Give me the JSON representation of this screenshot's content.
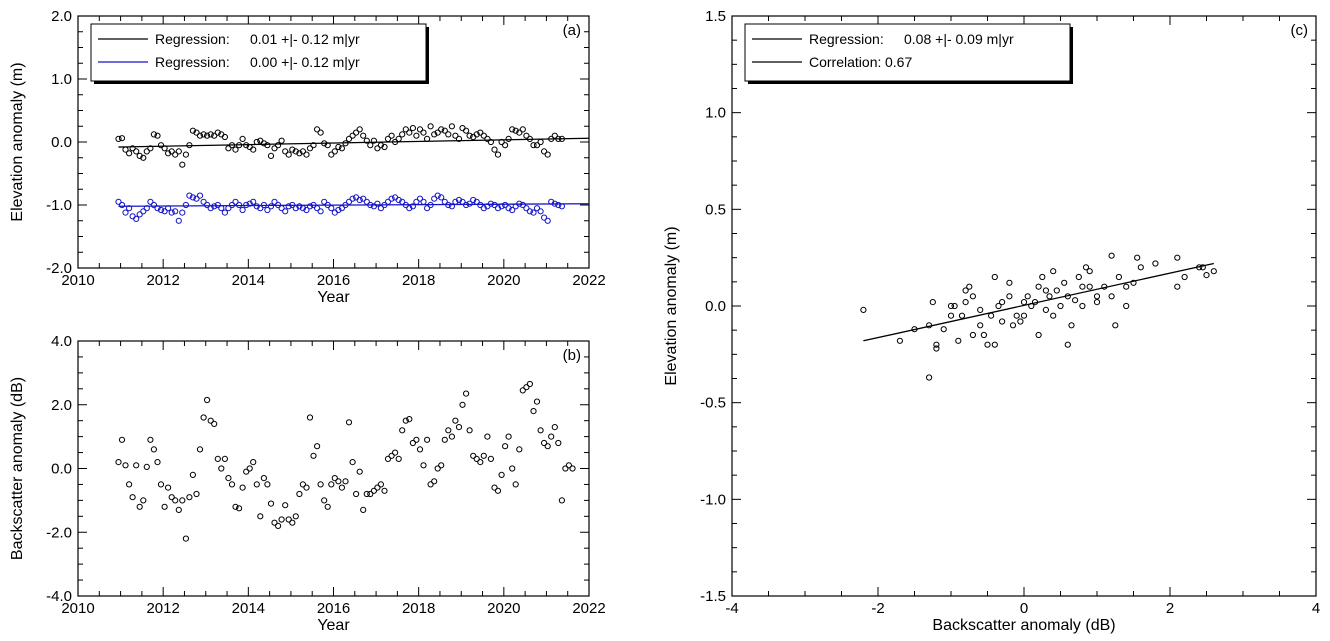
{
  "chart_data": [
    {
      "panel": "(a)",
      "type": "scatter",
      "xlabel": "Year",
      "ylabel": "Elevation anomaly (m)",
      "xlim": [
        2010,
        2022
      ],
      "ylim": [
        -2.0,
        2.0
      ],
      "xticks": [
        "2010",
        "2012",
        "2014",
        "2016",
        "2018",
        "2020",
        "2022"
      ],
      "yticks": [
        "-2.0",
        "-1.0",
        "0.0",
        "1.0",
        "2.0"
      ],
      "legend": {
        "placement": "top-left",
        "entries": [
          {
            "label": "Regression:",
            "value": "0.01 +|-  0.12 m|yr",
            "color": "#000000"
          },
          {
            "label": "Regression:",
            "value": "0.00 +|-  0.12 m|yr",
            "color": "#1414c8"
          }
        ]
      },
      "series": [
        {
          "color": "#000000",
          "x_start": 2010.95,
          "x_step": 0.0833,
          "values": [
            0.05,
            0.06,
            -0.12,
            -0.18,
            -0.1,
            -0.15,
            -0.22,
            -0.25,
            -0.15,
            -0.1,
            0.12,
            0.1,
            -0.05,
            -0.1,
            -0.18,
            -0.15,
            -0.2,
            -0.15,
            -0.36,
            -0.2,
            -0.05,
            0.18,
            0.15,
            0.1,
            0.12,
            0.1,
            0.12,
            0.1,
            0.15,
            0.12,
            0.08,
            -0.1,
            -0.05,
            -0.12,
            -0.05,
            0.05,
            -0.05,
            -0.08,
            -0.12,
            0.0,
            0.02,
            -0.02,
            -0.05,
            -0.22,
            -0.1,
            -0.05,
            0.02,
            -0.15,
            -0.2,
            -0.12,
            -0.15,
            -0.18,
            -0.15,
            -0.2,
            -0.1,
            -0.05,
            0.2,
            0.15,
            -0.02,
            -0.05,
            -0.2,
            -0.15,
            -0.08,
            -0.1,
            -0.02,
            0.05,
            0.1,
            0.15,
            0.2,
            0.1,
            0.02,
            -0.05,
            0.02,
            -0.1,
            -0.05,
            -0.08,
            0.05,
            0.1,
            0.0,
            0.05,
            0.12,
            0.2,
            0.15,
            0.22,
            0.1,
            0.2,
            0.15,
            0.05,
            0.25,
            0.12,
            0.15,
            0.2,
            0.18,
            0.12,
            0.25,
            0.1,
            0.05,
            0.22,
            0.18,
            0.1,
            0.08,
            0.12,
            0.15,
            0.1,
            0.05,
            0.0,
            -0.12,
            -0.2,
            0.0,
            -0.05,
            0.05,
            0.2,
            0.18,
            0.15,
            0.2,
            0.1,
            0.05,
            -0.05,
            -0.05,
            0.0,
            -0.15,
            -0.2,
            0.05,
            0.1,
            0.05,
            0.05
          ],
          "trend": [
            -0.08,
            0.06
          ]
        },
        {
          "color": "#1414c8",
          "x_start": 2010.95,
          "x_step": 0.0833,
          "values": [
            -0.95,
            -1.0,
            -1.12,
            -1.05,
            -1.18,
            -1.22,
            -1.15,
            -1.1,
            -1.05,
            -0.95,
            -1.0,
            -1.05,
            -1.08,
            -1.1,
            -1.05,
            -1.12,
            -1.1,
            -1.25,
            -1.12,
            -1.0,
            -0.85,
            -0.88,
            -0.9,
            -0.85,
            -0.95,
            -1.0,
            -1.05,
            -1.02,
            -1.0,
            -1.05,
            -1.12,
            -1.05,
            -1.0,
            -0.95,
            -1.0,
            -1.08,
            -1.0,
            -0.98,
            -0.95,
            -1.02,
            -1.05,
            -1.0,
            -1.08,
            -1.02,
            -0.95,
            -1.0,
            -1.05,
            -1.1,
            -1.02,
            -1.0,
            -1.05,
            -1.02,
            -1.05,
            -1.08,
            -1.02,
            -1.0,
            -1.05,
            -1.1,
            -0.95,
            -1.0,
            -1.05,
            -1.12,
            -1.08,
            -1.05,
            -1.0,
            -0.95,
            -0.9,
            -0.88,
            -0.92,
            -0.9,
            -0.95,
            -1.0,
            -1.02,
            -0.98,
            -1.05,
            -1.0,
            -0.95,
            -0.9,
            -0.88,
            -0.92,
            -0.95,
            -1.0,
            -1.05,
            -1.02,
            -0.95,
            -0.9,
            -0.95,
            -1.05,
            -1.0,
            -0.9,
            -0.85,
            -0.88,
            -0.95,
            -1.0,
            -1.02,
            -0.95,
            -0.92,
            -0.95,
            -1.0,
            -0.98,
            -0.92,
            -0.95,
            -1.0,
            -1.05,
            -1.02,
            -0.98,
            -1.0,
            -1.05,
            -1.02,
            -1.0,
            -1.05,
            -1.08,
            -1.02,
            -0.98,
            -1.0,
            -1.05,
            -1.1,
            -1.12,
            -1.05,
            -1.1,
            -1.2,
            -1.25,
            -0.95,
            -0.98,
            -1.0,
            -1.02
          ],
          "trend": [
            -1.02,
            -0.98
          ]
        }
      ]
    },
    {
      "panel": "(b)",
      "type": "scatter",
      "xlabel": "Year",
      "ylabel": "Backscatter anomaly (dB)",
      "xlim": [
        2010,
        2022
      ],
      "ylim": [
        -4.0,
        4.0
      ],
      "xticks": [
        "2010",
        "2012",
        "2014",
        "2016",
        "2018",
        "2020",
        "2022"
      ],
      "yticks": [
        "-4.0",
        "-2.0",
        "0.0",
        "2.0",
        "4.0"
      ],
      "series": [
        {
          "color": "#000000",
          "x_start": 2010.95,
          "x_step": 0.0833,
          "values": [
            0.2,
            0.9,
            0.1,
            -0.5,
            -0.9,
            0.1,
            -1.2,
            -1.0,
            0.05,
            0.9,
            0.6,
            0.2,
            -0.5,
            -1.2,
            -0.6,
            -0.9,
            -1.0,
            -1.3,
            -1.0,
            -2.2,
            -0.9,
            -0.2,
            -0.8,
            0.6,
            1.6,
            2.15,
            1.5,
            1.4,
            0.3,
            0.0,
            0.3,
            -0.3,
            -0.5,
            -1.2,
            -1.25,
            -0.6,
            -0.1,
            0.0,
            0.2,
            -0.5,
            -1.5,
            -0.3,
            -0.5,
            -1.1,
            -1.7,
            -1.8,
            -1.6,
            -1.15,
            -1.6,
            -1.7,
            -1.5,
            -0.8,
            -0.5,
            -0.6,
            1.6,
            0.4,
            0.7,
            -0.5,
            -1.0,
            -1.2,
            -0.5,
            -0.3,
            -0.4,
            -0.6,
            -0.4,
            1.45,
            0.2,
            -0.8,
            -0.1,
            -1.3,
            -0.8,
            -0.8,
            -0.7,
            -0.6,
            -0.5,
            -0.7,
            0.3,
            0.4,
            0.5,
            0.3,
            1.2,
            1.5,
            1.55,
            0.8,
            0.9,
            0.6,
            0.1,
            0.9,
            -0.5,
            -0.4,
            0.0,
            0.1,
            0.9,
            1.2,
            1.0,
            1.5,
            1.3,
            2.0,
            2.35,
            1.2,
            0.4,
            0.3,
            0.2,
            0.4,
            1.0,
            0.3,
            -0.6,
            -0.7,
            -0.2,
            0.7,
            1.0,
            0.0,
            -0.5,
            0.6,
            2.45,
            2.55,
            2.65,
            1.8,
            2.1,
            1.2,
            0.8,
            0.7,
            1.0,
            1.3,
            0.8,
            -1.0,
            0.0,
            0.1,
            0.0
          ]
        }
      ]
    },
    {
      "panel": "(c)",
      "type": "scatter",
      "xlabel": "Backscatter anomaly (dB)",
      "ylabel": "Elevation anomaly (m)",
      "xlim": [
        -4,
        4
      ],
      "ylim": [
        -1.5,
        1.5
      ],
      "xticks": [
        "-4",
        "-2",
        "0",
        "2",
        "4"
      ],
      "yticks": [
        "-1.5",
        "-1.0",
        "-0.5",
        "0.0",
        "0.5",
        "1.0",
        "1.5"
      ],
      "legend": {
        "placement": "top-left",
        "entries": [
          {
            "label": "Regression:",
            "value": "0.08 +|-  0.09 m|yr",
            "color": "#000000"
          },
          {
            "label": "Correlation:",
            "value": "0.67",
            "color": "#000000"
          }
        ]
      },
      "series": [
        {
          "color": "#000000",
          "points": [
            [
              -2.2,
              -0.02
            ],
            [
              -1.3,
              -0.37
            ],
            [
              -1.25,
              0.02
            ],
            [
              -1.3,
              -0.1
            ],
            [
              -1.2,
              -0.2
            ],
            [
              -1.1,
              -0.12
            ],
            [
              -1.0,
              -0.05
            ],
            [
              -0.95,
              0.0
            ],
            [
              -0.9,
              -0.18
            ],
            [
              -0.85,
              -0.05
            ],
            [
              -0.8,
              0.02
            ],
            [
              -0.75,
              0.1
            ],
            [
              -0.7,
              0.05
            ],
            [
              -0.6,
              -0.1
            ],
            [
              -0.55,
              -0.15
            ],
            [
              -0.5,
              -0.2
            ],
            [
              -0.45,
              -0.05
            ],
            [
              -0.4,
              0.15
            ],
            [
              -0.35,
              0.0
            ],
            [
              -0.3,
              -0.08
            ],
            [
              -0.2,
              0.12
            ],
            [
              -0.15,
              -0.1
            ],
            [
              -0.1,
              -0.05
            ],
            [
              0.0,
              -0.05
            ],
            [
              0.05,
              0.05
            ],
            [
              0.1,
              0.0
            ],
            [
              0.15,
              0.02
            ],
            [
              0.2,
              0.1
            ],
            [
              0.25,
              0.15
            ],
            [
              0.3,
              -0.02
            ],
            [
              0.35,
              0.05
            ],
            [
              0.4,
              0.18
            ],
            [
              0.45,
              0.08
            ],
            [
              0.5,
              0.0
            ],
            [
              0.55,
              0.12
            ],
            [
              0.6,
              0.05
            ],
            [
              0.65,
              -0.1
            ],
            [
              0.7,
              0.03
            ],
            [
              0.75,
              0.15
            ],
            [
              0.8,
              0.1
            ],
            [
              0.85,
              0.2
            ],
            [
              0.9,
              0.18
            ],
            [
              1.0,
              0.05
            ],
            [
              1.1,
              0.1
            ],
            [
              1.2,
              0.26
            ],
            [
              1.25,
              -0.1
            ],
            [
              1.3,
              0.15
            ],
            [
              1.4,
              0.1
            ],
            [
              1.5,
              0.12
            ],
            [
              1.55,
              0.25
            ],
            [
              1.6,
              0.2
            ],
            [
              1.8,
              0.22
            ],
            [
              2.1,
              0.1
            ],
            [
              2.2,
              0.15
            ],
            [
              2.4,
              0.2
            ],
            [
              2.5,
              0.16
            ],
            [
              2.6,
              0.18
            ],
            [
              2.45,
              0.2
            ],
            [
              2.1,
              0.25
            ],
            [
              1.2,
              0.05
            ],
            [
              1.0,
              0.02
            ],
            [
              0.3,
              0.08
            ],
            [
              -0.05,
              -0.08
            ],
            [
              -1.2,
              -0.22
            ],
            [
              -1.5,
              -0.12
            ],
            [
              -1.7,
              -0.18
            ],
            [
              -1.0,
              0.0
            ],
            [
              -0.4,
              -0.2
            ],
            [
              0.2,
              -0.15
            ],
            [
              0.6,
              -0.2
            ],
            [
              -0.6,
              -0.02
            ],
            [
              0.0,
              0.02
            ],
            [
              0.8,
              0.0
            ],
            [
              -0.2,
              0.05
            ],
            [
              -0.7,
              -0.15
            ],
            [
              1.4,
              0.0
            ],
            [
              0.9,
              0.1
            ],
            [
              -0.8,
              0.08
            ],
            [
              0.4,
              -0.05
            ],
            [
              -0.3,
              0.02
            ]
          ],
          "trend_x": [
            -2.2,
            2.6
          ],
          "trend_y": [
            -0.18,
            0.22
          ]
        }
      ]
    }
  ]
}
